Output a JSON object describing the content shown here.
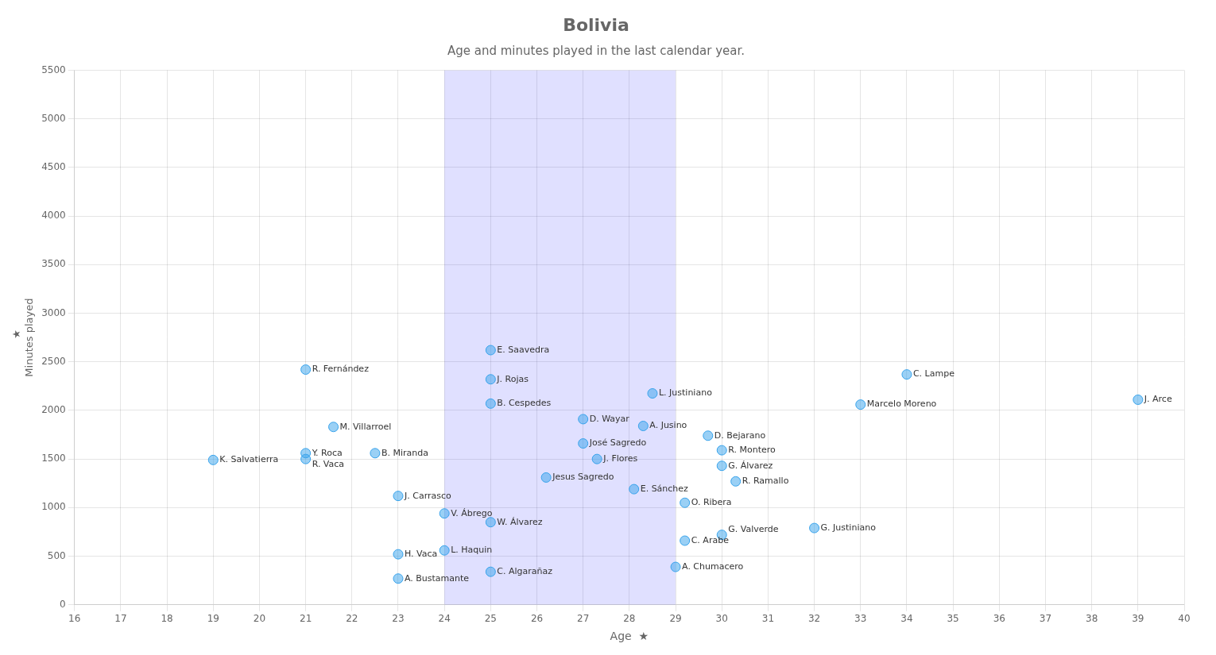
{
  "chart_data": {
    "type": "scatter",
    "title": "Bolivia",
    "subtitle": "Age and minutes played in the last calendar year.",
    "xlabel": "Age  ★",
    "ylabel": "  ★\nMinutes played",
    "labels": [
      "K. Salvatierra",
      "R. Fernández",
      "M. Villarroel",
      "Y. Roca",
      "R. Vaca",
      "B. Miranda",
      "J. Carrasco",
      "H. Vaca",
      "A. Bustamante",
      "V. Ábrego",
      "L. Haquin",
      "E. Saavedra",
      "J. Rojas",
      "B. Cespedes",
      "W. Álvarez",
      "C. Algarañaz",
      "D. Wayar",
      "José Sagredo",
      "J. Flores",
      "Jesus Sagredo",
      "E. Sánchez",
      "A. Jusino",
      "L. Justiniano",
      "O. Ribera",
      "C. Arabe",
      "A. Chumacero",
      "D. Bejarano",
      "R. Montero",
      "G. Álvarez",
      "R. Ramallo",
      "G. Valverde",
      "G. Justiniano",
      "Marcelo Moreno",
      "C. Lampe",
      "J. Arce"
    ],
    "x": [
      19,
      21,
      21.6,
      21,
      21,
      22.5,
      23,
      23,
      23,
      24,
      24,
      25,
      25,
      25,
      25,
      25,
      27,
      27,
      27.3,
      26.2,
      28.1,
      28.3,
      28.5,
      29.2,
      29.2,
      29,
      29.7,
      30,
      30,
      30.3,
      30,
      32,
      33,
      34,
      39
    ],
    "values": [
      1490,
      2420,
      1830,
      1560,
      1500,
      1560,
      1120,
      520,
      270,
      940,
      560,
      2620,
      2320,
      2070,
      850,
      340,
      1910,
      1660,
      1500,
      1310,
      1190,
      1840,
      2175,
      1050,
      660,
      390,
      1740,
      1590,
      1430,
      1270,
      720,
      790,
      2060,
      2370,
      2110
    ],
    "highlight": {
      "x_start": 24,
      "x_end": 29,
      "color": "#0000ff"
    },
    "xlim": [
      16,
      40
    ],
    "ylim": [
      0,
      5500
    ],
    "xticks": [
      16,
      17,
      18,
      19,
      20,
      21,
      22,
      23,
      24,
      25,
      26,
      27,
      28,
      29,
      30,
      31,
      32,
      33,
      34,
      35,
      36,
      37,
      38,
      39,
      40
    ],
    "yticks": [
      0,
      500,
      1000,
      1500,
      2000,
      2500,
      3000,
      3500,
      4000,
      4500,
      5000,
      5500
    ],
    "grid": true
  }
}
